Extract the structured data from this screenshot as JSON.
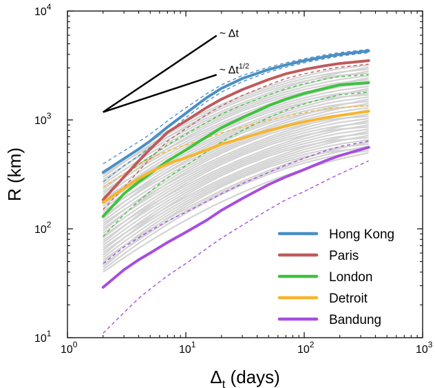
{
  "chart_data": {
    "type": "line",
    "x_scale": "log",
    "y_scale": "log",
    "xlim": [
      1,
      1000
    ],
    "ylim": [
      10,
      10000
    ],
    "xlabel": "Δt (days)",
    "ylabel": "R (km)",
    "x_ticks": [
      {
        "value": 1,
        "base": "10",
        "exp": "0"
      },
      {
        "value": 10,
        "base": "10",
        "exp": "1"
      },
      {
        "value": 100,
        "base": "10",
        "exp": "2"
      },
      {
        "value": 1000,
        "base": "10",
        "exp": "3"
      }
    ],
    "y_ticks": [
      {
        "value": 10,
        "base": "10",
        "exp": "1"
      },
      {
        "value": 100,
        "base": "10",
        "exp": "2"
      },
      {
        "value": 1000,
        "base": "10",
        "exp": "3"
      },
      {
        "value": 10000,
        "base": "10",
        "exp": "4"
      }
    ],
    "grid": false,
    "legend_position": "bottom-right",
    "x": [
      2,
      3,
      4,
      5,
      7,
      10,
      15,
      20,
      30,
      50,
      70,
      100,
      150,
      200,
      350
    ],
    "series": [
      {
        "name": "Hong Kong",
        "color": "#4a8fc4",
        "values": [
          330,
          440,
          540,
          640,
          860,
          1150,
          1600,
          1950,
          2400,
          2900,
          3200,
          3500,
          3800,
          4000,
          4300
        ]
      },
      {
        "name": "Paris",
        "color": "#c05a5a",
        "values": [
          185,
          300,
          420,
          540,
          770,
          980,
          1300,
          1550,
          1900,
          2350,
          2650,
          2900,
          3150,
          3300,
          3500
        ]
      },
      {
        "name": "London",
        "color": "#3fc23f",
        "values": [
          130,
          210,
          270,
          320,
          420,
          530,
          700,
          850,
          1050,
          1350,
          1550,
          1750,
          1950,
          2100,
          2200
        ]
      },
      {
        "name": "Detroit",
        "color": "#f7b52c",
        "values": [
          175,
          235,
          290,
          330,
          395,
          450,
          530,
          600,
          680,
          800,
          880,
          960,
          1050,
          1100,
          1200
        ]
      },
      {
        "name": "Bandung",
        "color": "#a64de0",
        "values": [
          29,
          42,
          52,
          60,
          75,
          93,
          120,
          148,
          190,
          255,
          300,
          350,
          420,
          470,
          560
        ]
      }
    ],
    "dashed_bounds": [
      {
        "color": "#4a8fc4",
        "lower": [
          270,
          380,
          470,
          560,
          760,
          1050,
          1480,
          1800,
          2250,
          2750,
          3050,
          3350,
          3650,
          3850,
          4150
        ],
        "upper": [
          395,
          520,
          630,
          740,
          980,
          1290,
          1740,
          2100,
          2560,
          3050,
          3350,
          3650,
          3960,
          4150,
          4450
        ]
      },
      {
        "color": "#c05a5a",
        "lower": [
          150,
          240,
          340,
          440,
          640,
          830,
          1120,
          1350,
          1680,
          2100,
          2400,
          2650,
          2900,
          3050,
          3250
        ]
      },
      {
        "color": "#3fc23f",
        "lower": [
          85,
          135,
          180,
          220,
          295,
          380,
          510,
          630,
          800,
          1050,
          1230,
          1400,
          1580,
          1700,
          1800
        ],
        "upper": [
          190,
          300,
          390,
          460,
          590,
          740,
          950,
          1130,
          1370,
          1700,
          1930,
          2150,
          2380,
          2500,
          2600
        ]
      },
      {
        "color": "#f7b52c",
        "upper": [
          240,
          320,
          390,
          440,
          520,
          590,
          680,
          760,
          860,
          990,
          1080,
          1170,
          1260,
          1300,
          1350
        ]
      },
      {
        "color": "#a64de0",
        "lower": [
          11,
          17,
          23,
          28,
          37,
          48,
          66,
          82,
          108,
          150,
          185,
          220,
          275,
          320,
          420
        ],
        "upper": [
          48,
          68,
          83,
          96,
          118,
          142,
          178,
          210,
          260,
          330,
          385,
          445,
          520,
          570,
          640
        ]
      }
    ],
    "background_curves": {
      "color": "#d3d3d3",
      "count": 42,
      "value_at_x2": [
        40,
        330
      ],
      "value_at_x350": [
        500,
        3200
      ]
    },
    "scaling_guides": [
      {
        "label": "~ Δt",
        "slope": 1
      },
      {
        "label": "~ Δt^1/2",
        "slope": 0.5
      }
    ],
    "scaling_guide_origin": {
      "x": 2,
      "y": 1180
    },
    "scaling_guide_ends": [
      {
        "x": 18.2,
        "y": 5950
      },
      {
        "x": 18.2,
        "y": 2600
      }
    ],
    "annotations": [
      {
        "prefix": "~ Δt",
        "sup": ""
      },
      {
        "prefix": "~ Δt",
        "sup": "1/2"
      }
    ]
  }
}
